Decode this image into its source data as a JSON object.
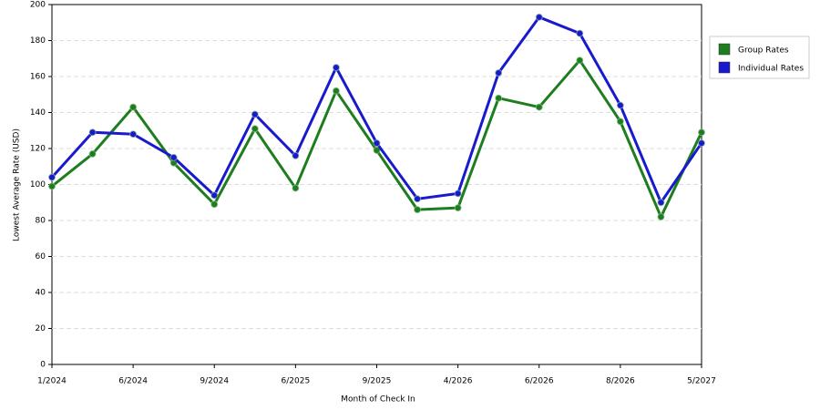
{
  "chart_data": {
    "type": "line",
    "x_label": "Month of Check In",
    "y_label": "Lowest Average Rate (USD)",
    "categories": [
      "1/2024",
      null,
      "6/2024",
      null,
      "9/2024",
      null,
      "6/2025",
      null,
      "9/2025",
      null,
      "4/2026",
      null,
      "6/2026",
      null,
      "8/2026",
      null,
      "5/2027"
    ],
    "series": [
      {
        "name": "Group Rates",
        "color": "#1e7d1e",
        "values": [
          99,
          117,
          143,
          112,
          89,
          131,
          98,
          152,
          119,
          86,
          87,
          148,
          143,
          169,
          135,
          82,
          129
        ]
      },
      {
        "name": "Individual Rates",
        "color": "#1a1acd",
        "values": [
          104,
          129,
          128,
          115,
          94,
          139,
          116,
          165,
          123,
          92,
          95,
          162,
          193,
          184,
          144,
          90,
          123
        ]
      }
    ],
    "ylim": [
      0,
      200
    ],
    "yticks": [
      0,
      20,
      40,
      60,
      80,
      100,
      120,
      140,
      160,
      180,
      200
    ],
    "grid": true,
    "legend": "right"
  }
}
